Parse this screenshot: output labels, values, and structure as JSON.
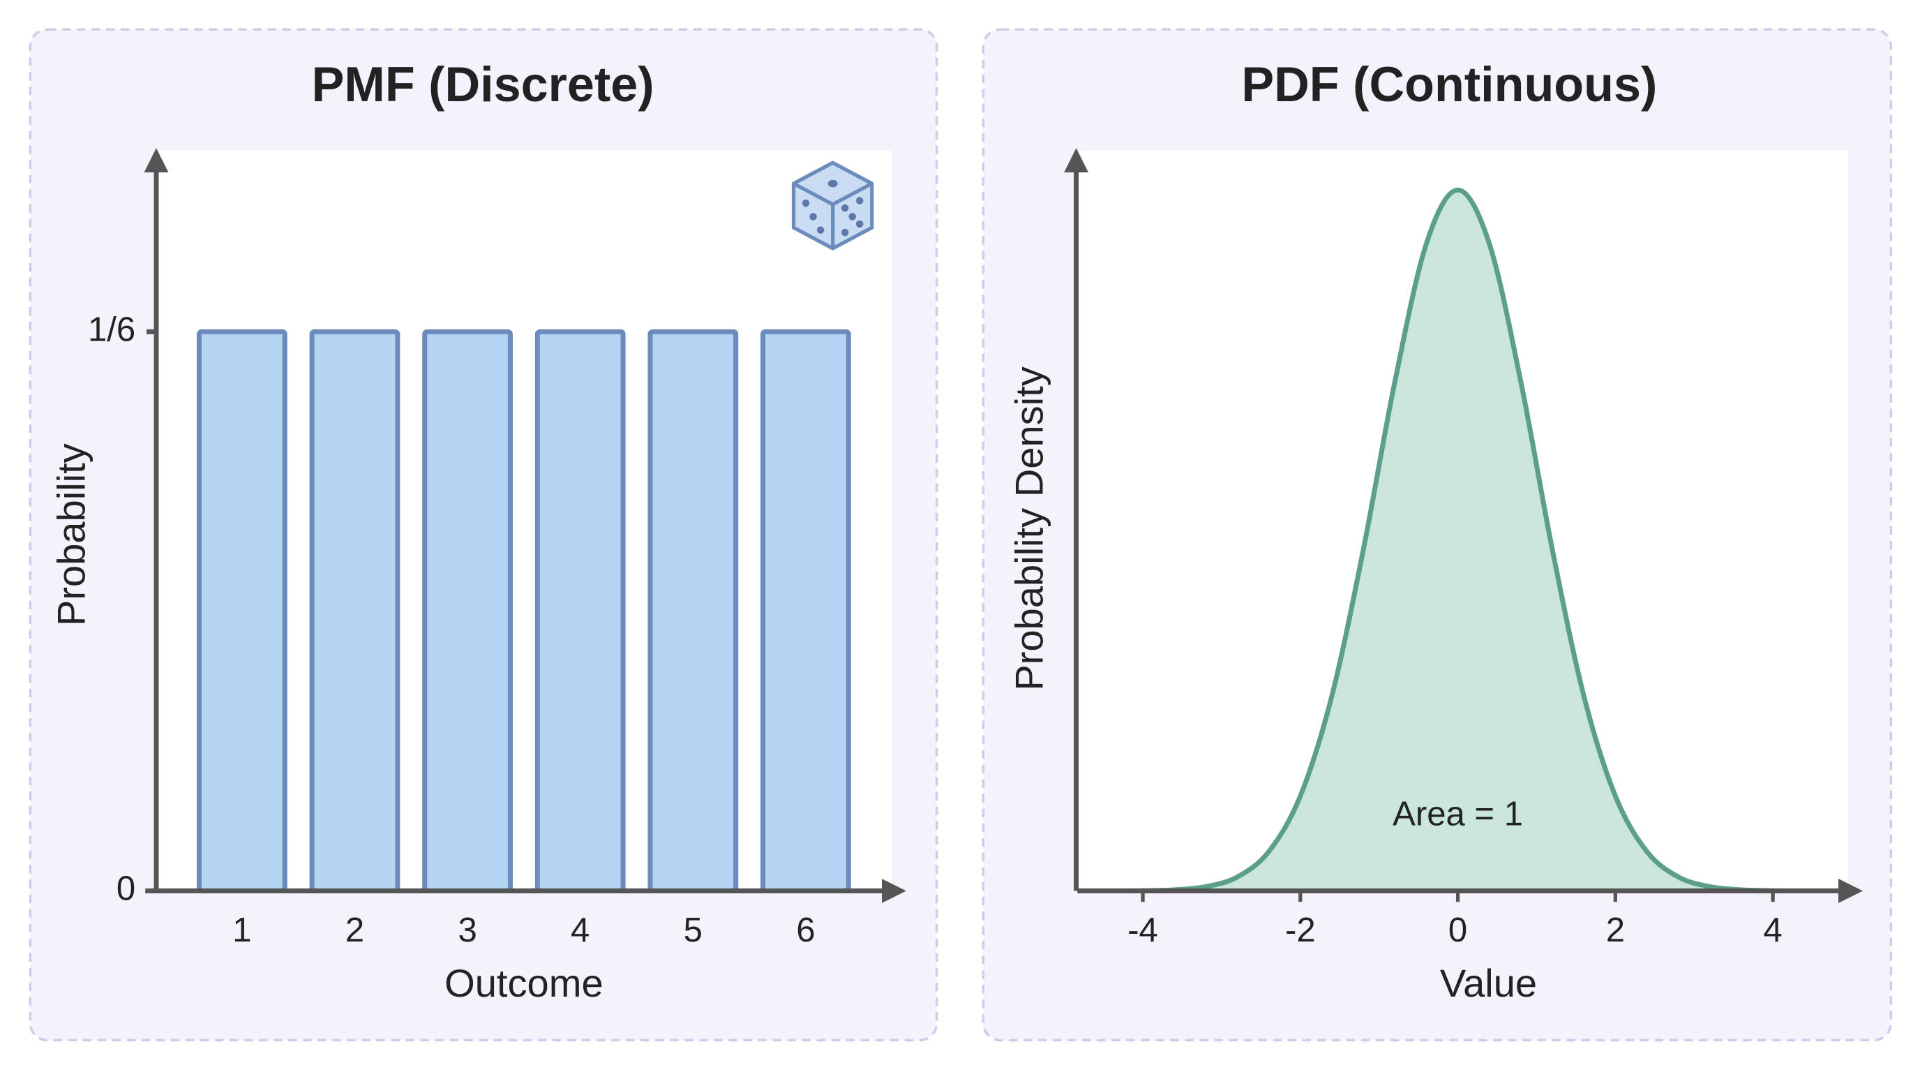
{
  "chart_data": [
    {
      "type": "bar",
      "title": "PMF (Discrete)",
      "x_label": "Outcome",
      "y_label": "Probability",
      "categories": [
        "1",
        "2",
        "3",
        "4",
        "5",
        "6"
      ],
      "values": [
        0.1667,
        0.1667,
        0.1667,
        0.1667,
        0.1667,
        0.1667
      ],
      "color": "#b4d4f2",
      "edge_color": "#6b8bbd",
      "ylim": [
        0,
        0.22
      ],
      "yticks": [
        0,
        {
          "value": 0.1667,
          "label": "1/6"
        }
      ]
    },
    {
      "type": "area",
      "title": "PDF (Continuous)",
      "x_label": "Value",
      "y_label": "Probability Density",
      "annotation": "Area = 1",
      "x": [
        -4.8,
        -4.4,
        -4.0,
        -3.6,
        -3.2,
        -2.8,
        -2.4,
        -2.0,
        -1.6,
        -1.2,
        -0.8,
        -0.4,
        0,
        0.4,
        0.8,
        1.2,
        1.6,
        2.0,
        2.4,
        2.8,
        3.2,
        3.6,
        4.0,
        4.4,
        4.8
      ],
      "values": [
        0.0,
        0.0,
        0.0001,
        0.0006,
        0.0024,
        0.0079,
        0.0224,
        0.054,
        0.1109,
        0.1942,
        0.2897,
        0.3683,
        0.3989,
        0.3683,
        0.2897,
        0.1942,
        0.1109,
        0.054,
        0.0224,
        0.0079,
        0.0024,
        0.0006,
        0.0001,
        0.0,
        0.0
      ],
      "color": "#5b9e8b",
      "fill_color": "#c9e6d8",
      "xlim": [
        -4.83,
        4.8
      ],
      "xticks": [
        -4,
        -2,
        0,
        2,
        4
      ],
      "ylim": [
        0,
        0.42
      ]
    }
  ]
}
